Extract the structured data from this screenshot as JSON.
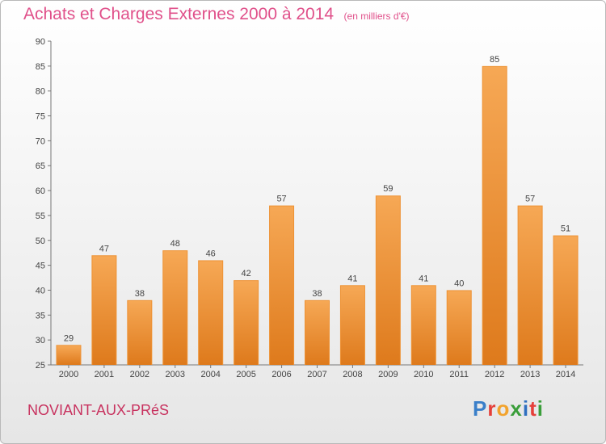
{
  "title": "Achats et Charges Externes 2000 à 2014",
  "unit": "(en milliers d'€)",
  "commune": "NOVIANT-AUX-PRéS",
  "logo": {
    "letters": [
      "P",
      "r",
      "o",
      "x",
      "i",
      "t",
      "i"
    ],
    "colors": [
      "#3a7fc9",
      "#e5403a",
      "#f2a32d",
      "#3a9e3a",
      "#2f6fc0",
      "#e5403a",
      "#3a9e3a"
    ]
  },
  "colors": {
    "bar": "#ee9234",
    "title": "#e0508a",
    "commune": "#c8325f"
  },
  "chart_data": {
    "type": "bar",
    "categories": [
      "2000",
      "2001",
      "2002",
      "2003",
      "2004",
      "2005",
      "2006",
      "2007",
      "2008",
      "2009",
      "2010",
      "2011",
      "2012",
      "2013",
      "2014"
    ],
    "values": [
      29,
      47,
      38,
      48,
      46,
      42,
      57,
      38,
      41,
      59,
      41,
      40,
      85,
      57,
      51
    ],
    "ylim": [
      25,
      90
    ],
    "yticks": [
      25,
      30,
      35,
      40,
      45,
      50,
      55,
      60,
      65,
      70,
      75,
      80,
      85,
      90
    ],
    "grid": false,
    "legend": "none"
  }
}
